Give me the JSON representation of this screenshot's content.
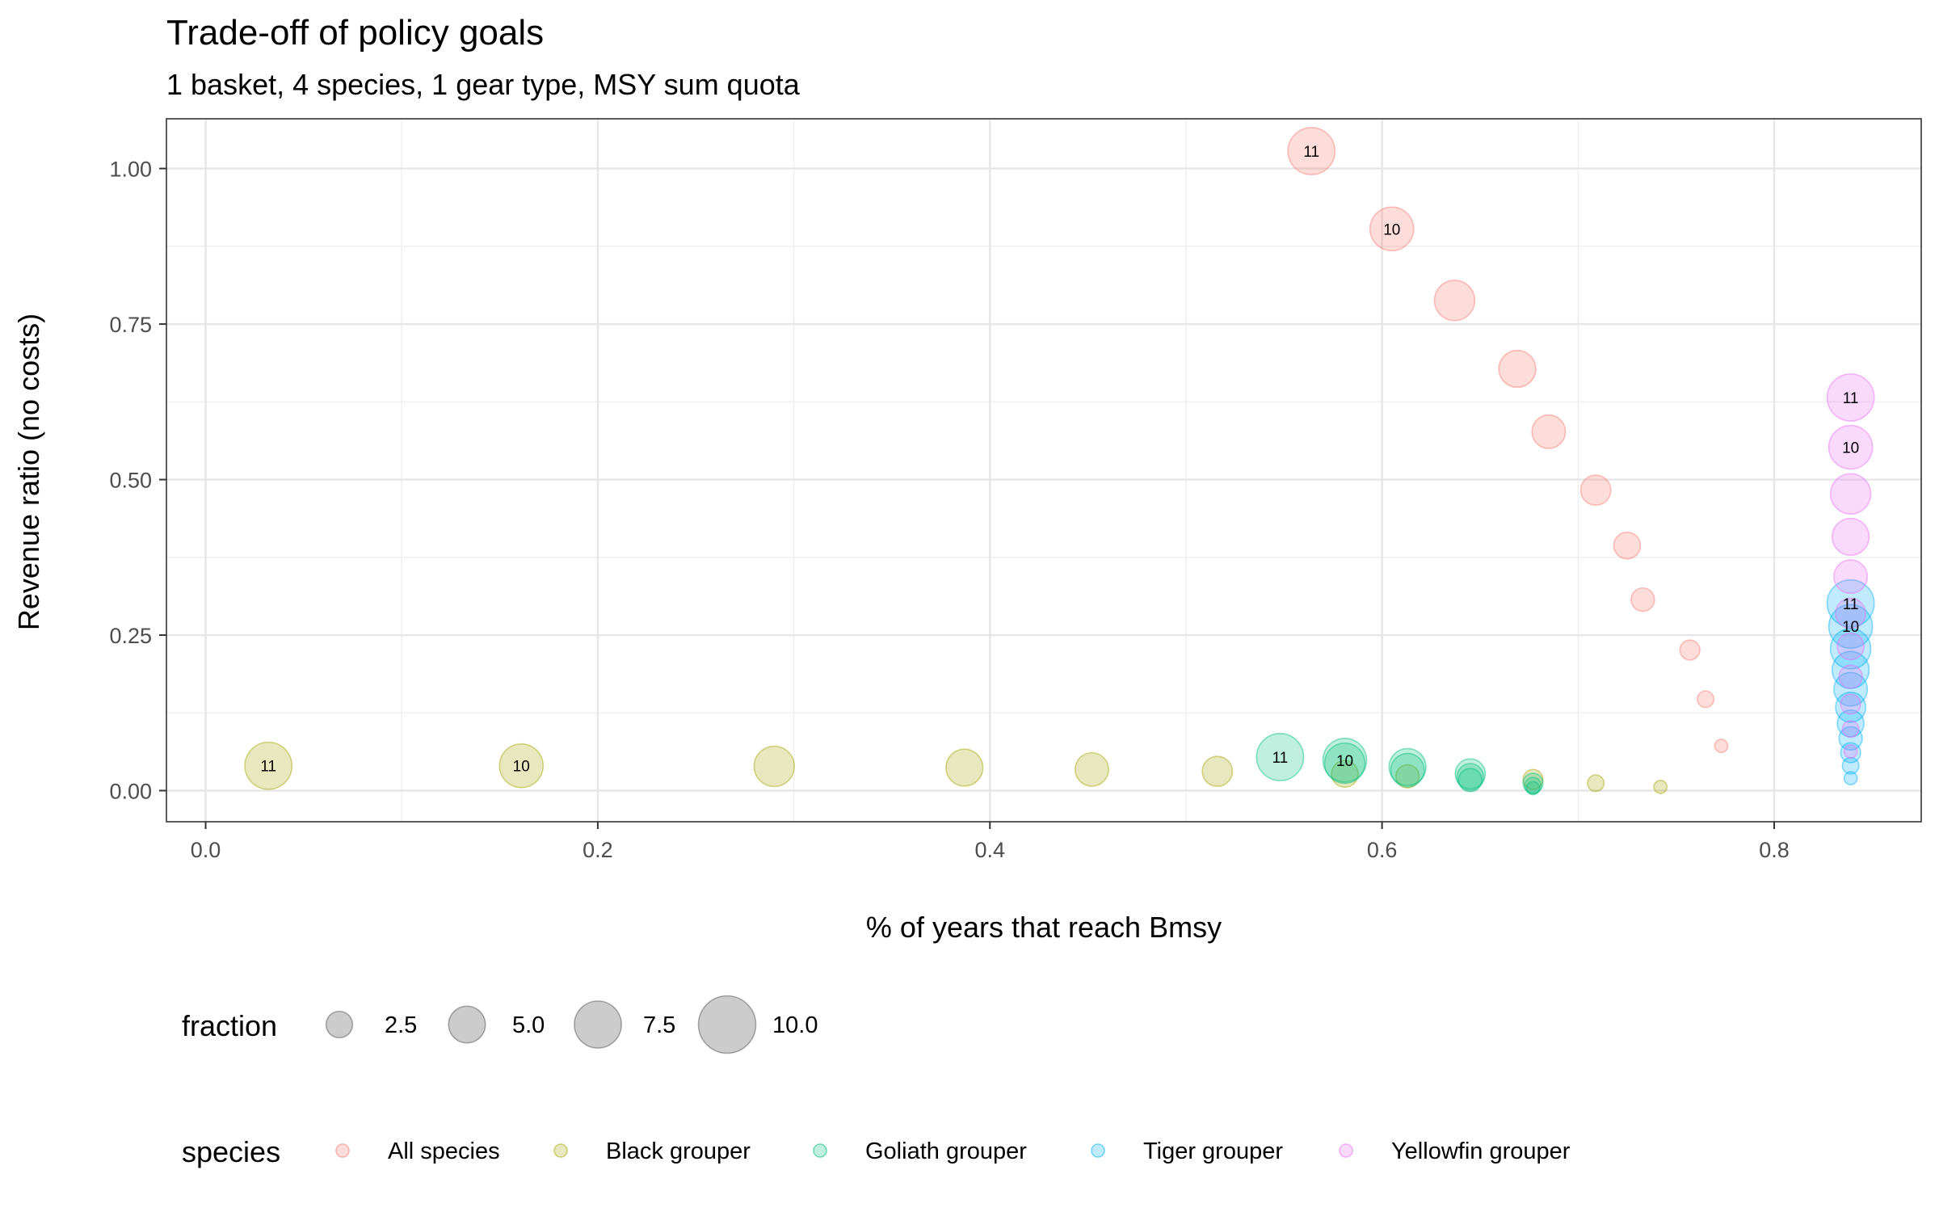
{
  "chart_data": {
    "type": "scatter",
    "title": "Trade-off of policy goals",
    "subtitle": "1 basket, 4 species, 1 gear type, MSY sum quota",
    "xlabel": "% of years that reach Bmsy",
    "ylabel": "Revenue ratio (no costs)",
    "xlim": [
      -0.02,
      0.875
    ],
    "ylim": [
      -0.05,
      1.08
    ],
    "x_ticks": [
      0.0,
      0.2,
      0.4,
      0.6,
      0.8
    ],
    "x_tick_labels": [
      "0.0",
      "0.2",
      "0.4",
      "0.6",
      "0.8"
    ],
    "y_ticks": [
      0.0,
      0.25,
      0.5,
      0.75,
      1.0
    ],
    "y_tick_labels": [
      "0.00",
      "0.25",
      "0.50",
      "0.75",
      "1.00"
    ],
    "grid": true,
    "point_alpha": 0.25,
    "size_legend": {
      "title": "fraction",
      "breaks": [
        2.5,
        5.0,
        7.5,
        10.0
      ],
      "labels": [
        "2.5",
        "5.0",
        "7.5",
        "10.0"
      ],
      "color": "#000000"
    },
    "color_legend": {
      "title": "species",
      "placement": "bottom"
    },
    "series": [
      {
        "name": "All species",
        "color": "#F8766D",
        "points": [
          {
            "x": 0.564,
            "y": 1.028,
            "size": 11,
            "label": "11"
          },
          {
            "x": 0.605,
            "y": 0.903,
            "size": 10,
            "label": "10"
          },
          {
            "x": 0.637,
            "y": 0.788,
            "size": 9
          },
          {
            "x": 0.669,
            "y": 0.678,
            "size": 8
          },
          {
            "x": 0.685,
            "y": 0.577,
            "size": 7
          },
          {
            "x": 0.709,
            "y": 0.483,
            "size": 6
          },
          {
            "x": 0.725,
            "y": 0.394,
            "size": 5
          },
          {
            "x": 0.733,
            "y": 0.307,
            "size": 4
          },
          {
            "x": 0.757,
            "y": 0.226,
            "size": 3
          },
          {
            "x": 0.765,
            "y": 0.147,
            "size": 2
          },
          {
            "x": 0.773,
            "y": 0.072,
            "size": 1
          }
        ]
      },
      {
        "name": "Black grouper",
        "color": "#A3A500",
        "points": [
          {
            "x": 0.032,
            "y": 0.04,
            "size": 11,
            "label": "11"
          },
          {
            "x": 0.161,
            "y": 0.04,
            "size": 10,
            "label": "10"
          },
          {
            "x": 0.29,
            "y": 0.039,
            "size": 9
          },
          {
            "x": 0.387,
            "y": 0.037,
            "size": 8
          },
          {
            "x": 0.452,
            "y": 0.034,
            "size": 7
          },
          {
            "x": 0.516,
            "y": 0.031,
            "size": 6
          },
          {
            "x": 0.581,
            "y": 0.027,
            "size": 5
          },
          {
            "x": 0.613,
            "y": 0.023,
            "size": 4
          },
          {
            "x": 0.677,
            "y": 0.018,
            "size": 3
          },
          {
            "x": 0.709,
            "y": 0.012,
            "size": 2
          },
          {
            "x": 0.742,
            "y": 0.006,
            "size": 1
          }
        ]
      },
      {
        "name": "Goliath grouper",
        "color": "#00BF7D",
        "points": [
          {
            "x": 0.548,
            "y": 0.054,
            "size": 11,
            "label": "11"
          },
          {
            "x": 0.581,
            "y": 0.049,
            "size": 10,
            "label": "10"
          },
          {
            "x": 0.581,
            "y": 0.044,
            "size": 9
          },
          {
            "x": 0.613,
            "y": 0.038,
            "size": 8
          },
          {
            "x": 0.613,
            "y": 0.033,
            "size": 7
          },
          {
            "x": 0.645,
            "y": 0.027,
            "size": 6
          },
          {
            "x": 0.645,
            "y": 0.022,
            "size": 5
          },
          {
            "x": 0.645,
            "y": 0.017,
            "size": 4
          },
          {
            "x": 0.677,
            "y": 0.012,
            "size": 3
          },
          {
            "x": 0.677,
            "y": 0.008,
            "size": 2
          },
          {
            "x": 0.677,
            "y": 0.004,
            "size": 1
          }
        ]
      },
      {
        "name": "Tiger grouper",
        "color": "#00B0F6",
        "points": [
          {
            "x": 0.839,
            "y": 0.301,
            "size": 11,
            "label": "11"
          },
          {
            "x": 0.839,
            "y": 0.264,
            "size": 10,
            "label": "10"
          },
          {
            "x": 0.839,
            "y": 0.228,
            "size": 9
          },
          {
            "x": 0.839,
            "y": 0.194,
            "size": 8
          },
          {
            "x": 0.839,
            "y": 0.163,
            "size": 7
          },
          {
            "x": 0.839,
            "y": 0.134,
            "size": 6
          },
          {
            "x": 0.839,
            "y": 0.108,
            "size": 5
          },
          {
            "x": 0.839,
            "y": 0.084,
            "size": 4
          },
          {
            "x": 0.839,
            "y": 0.061,
            "size": 3
          },
          {
            "x": 0.839,
            "y": 0.04,
            "size": 2
          },
          {
            "x": 0.839,
            "y": 0.02,
            "size": 1
          }
        ]
      },
      {
        "name": "Yellowfin grouper",
        "color": "#E76BF3",
        "points": [
          {
            "x": 0.839,
            "y": 0.632,
            "size": 11,
            "label": "11"
          },
          {
            "x": 0.839,
            "y": 0.552,
            "size": 10,
            "label": "10"
          },
          {
            "x": 0.839,
            "y": 0.477,
            "size": 9
          },
          {
            "x": 0.839,
            "y": 0.408,
            "size": 8
          },
          {
            "x": 0.839,
            "y": 0.344,
            "size": 7
          },
          {
            "x": 0.839,
            "y": 0.285,
            "size": 6
          },
          {
            "x": 0.839,
            "y": 0.232,
            "size": 5
          },
          {
            "x": 0.839,
            "y": 0.183,
            "size": 4
          },
          {
            "x": 0.839,
            "y": 0.139,
            "size": 3
          },
          {
            "x": 0.839,
            "y": 0.099,
            "size": 2
          },
          {
            "x": 0.839,
            "y": 0.063,
            "size": 1
          }
        ]
      }
    ]
  }
}
